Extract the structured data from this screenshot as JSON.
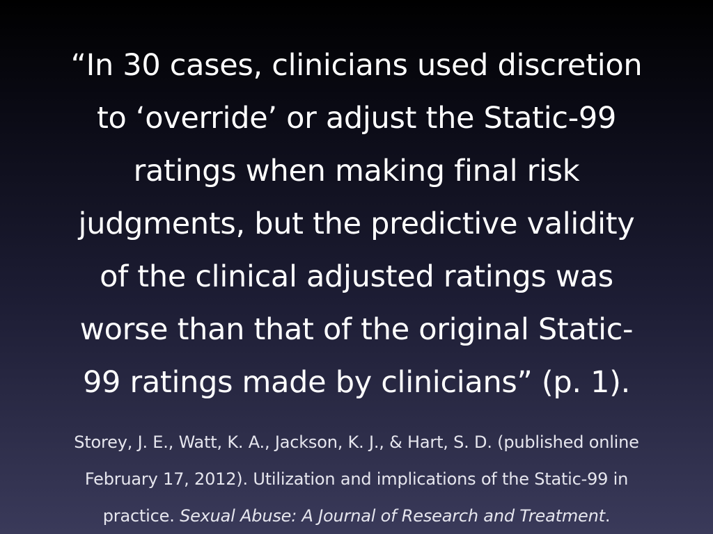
{
  "quote": {
    "lines": [
      "“In 30 cases, clinicians used discretion",
      "to ‘override’ or adjust the Static-99",
      "ratings when making final risk",
      "judgments, but the predictive validity",
      "of the clinical adjusted ratings was",
      "worse than that of the original Static-",
      "99 ratings made by clinicians” (p. 1)."
    ]
  },
  "citation": {
    "line1": "Storey, J. E., Watt, K. A., Jackson, K. J., & Hart, S. D. (published online",
    "line2": "February 17, 2012). Utilization and implications of the Static-99 in",
    "line3_prefix": "practice. ",
    "journal": "Sexual Abuse: A Journal of Research and Treatment",
    "line3_suffix": "."
  },
  "colors": {
    "text": "#ffffff",
    "citation_text": "#e6e6ee",
    "background_top": "#000000",
    "background_bottom": "#3a3a5a"
  }
}
